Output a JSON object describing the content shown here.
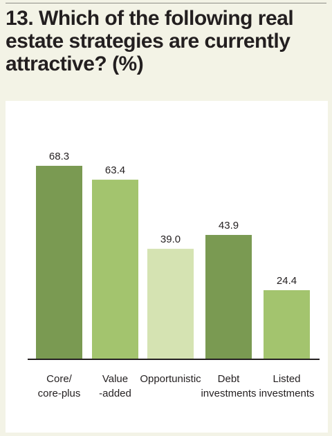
{
  "chart_data": {
    "type": "bar",
    "title": "13. Which of the following real estate strategies are currently attractive? (%)",
    "categories": [
      [
        "Core/",
        "core-plus"
      ],
      [
        "Value",
        "-added"
      ],
      [
        "Opportunistic"
      ],
      [
        "Debt",
        "investments"
      ],
      [
        "Listed",
        "investments"
      ]
    ],
    "values": [
      68.3,
      63.4,
      39.0,
      43.9,
      24.4
    ],
    "value_labels": [
      "68.3",
      "63.4",
      "39.0",
      "43.9",
      "24.4"
    ],
    "bar_colors": [
      "#7a9a52",
      "#a3c46e",
      "#d5e3b2",
      "#7a9a52",
      "#a3c46e"
    ],
    "ylim": [
      0,
      100
    ],
    "xlabel": "",
    "ylabel": "",
    "grid": false,
    "legend": "none"
  }
}
